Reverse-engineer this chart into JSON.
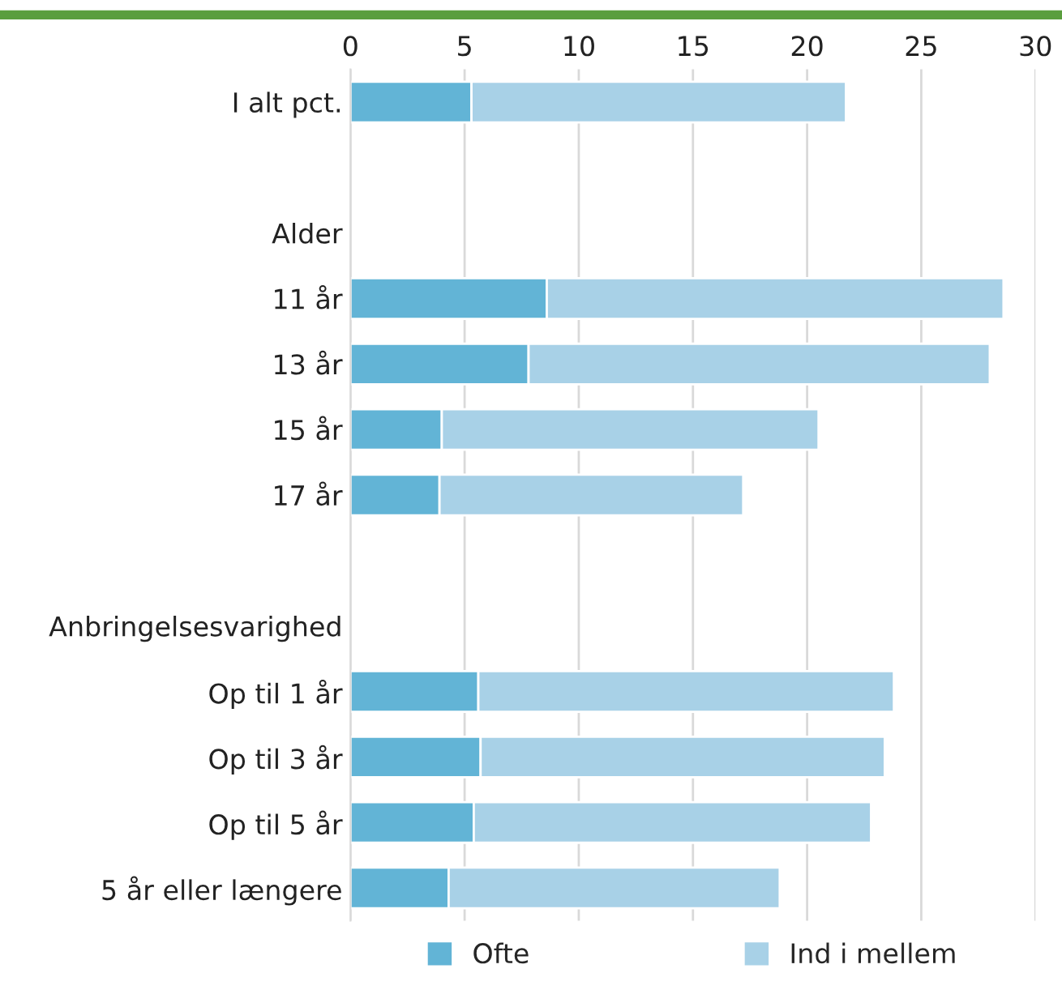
{
  "chart_data": {
    "type": "bar",
    "orientation": "horizontal",
    "stacked": true,
    "categories": [
      "I alt pct.",
      null,
      "Alder",
      "11 år",
      "13 år",
      "15 år",
      "17 år",
      null,
      "Anbringelsesvarighed",
      "Op til 1 år",
      "Op til 3 år",
      "Op til 5 år",
      "5 år eller længere"
    ],
    "series": [
      {
        "name": "Ofte",
        "color": "#62b4d6",
        "values": [
          5.3,
          null,
          null,
          8.6,
          7.8,
          4.0,
          3.9,
          null,
          null,
          5.6,
          5.7,
          5.4,
          4.3
        ]
      },
      {
        "name": "Ind i mellem",
        "color": "#a8d1e7",
        "values": [
          16.4,
          null,
          null,
          20.0,
          20.2,
          16.5,
          13.3,
          null,
          null,
          18.2,
          17.7,
          17.4,
          14.5
        ]
      }
    ],
    "xlim": [
      0,
      30
    ],
    "xticks": [
      0,
      5,
      10,
      15,
      20,
      25,
      30
    ],
    "grid": "x",
    "legend": "bottom"
  }
}
